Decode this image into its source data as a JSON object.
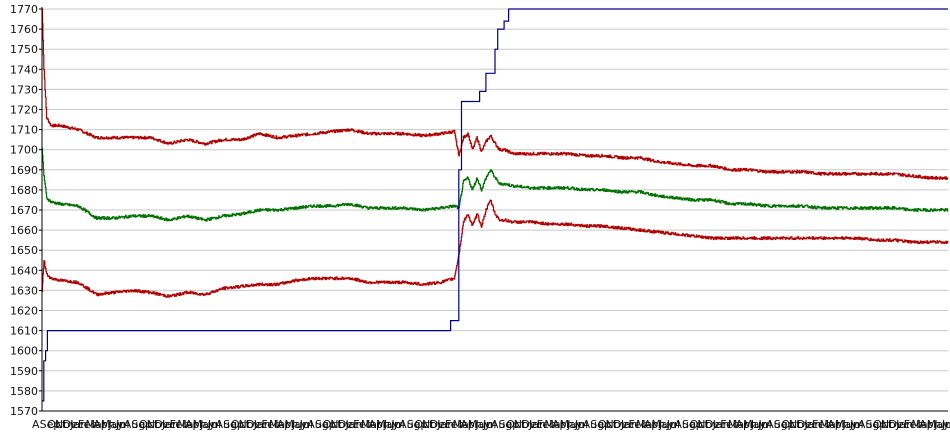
{
  "chart_data": {
    "type": "line",
    "title": "",
    "xlabel": "",
    "ylabel": "",
    "grid": true,
    "legend": "none",
    "ylim": [
      1570,
      1770
    ],
    "y_ticks": [
      1570,
      1580,
      1590,
      1600,
      1610,
      1620,
      1630,
      1640,
      1650,
      1660,
      1670,
      1680,
      1690,
      1700,
      1710,
      1720,
      1730,
      1740,
      1750,
      1760,
      1770
    ],
    "x_range": [
      0,
      1
    ],
    "x_tick_labels": [
      "A",
      "Sep",
      "Oct",
      "Nov",
      "Dec",
      "Jan",
      "Feb",
      "Mar",
      "Apr",
      "May",
      "Jun",
      "Jul",
      "Aug"
    ],
    "colors": {
      "upper_band": "#b00000",
      "middle": "#007000",
      "lower_band": "#b00000",
      "step": "#00008b",
      "grid": "#c8c8c8",
      "axis": "#000000"
    },
    "series": [
      {
        "key": "upper_band",
        "x": [
          0.0,
          0.002,
          0.005,
          0.01,
          0.02,
          0.04,
          0.06,
          0.08,
          0.1,
          0.12,
          0.14,
          0.16,
          0.18,
          0.2,
          0.22,
          0.24,
          0.26,
          0.28,
          0.3,
          0.32,
          0.34,
          0.36,
          0.38,
          0.4,
          0.42,
          0.44,
          0.455,
          0.46,
          0.465,
          0.47,
          0.475,
          0.48,
          0.485,
          0.49,
          0.495,
          0.5,
          0.505,
          0.51,
          0.52,
          0.54,
          0.56,
          0.58,
          0.6,
          0.62,
          0.64,
          0.66,
          0.68,
          0.7,
          0.72,
          0.74,
          0.76,
          0.78,
          0.8,
          0.82,
          0.84,
          0.86,
          0.88,
          0.9,
          0.92,
          0.94,
          0.96,
          0.98,
          1.0
        ],
        "values": [
          1770,
          1740,
          1716,
          1712,
          1712,
          1710,
          1706,
          1706,
          1706,
          1706,
          1703,
          1705,
          1703,
          1705,
          1705,
          1708,
          1706,
          1707,
          1708,
          1709,
          1710,
          1708,
          1708,
          1708,
          1707,
          1708,
          1709,
          1697,
          1706,
          1708,
          1700,
          1706,
          1699,
          1704,
          1707,
          1703,
          1700,
          1700,
          1698,
          1698,
          1698,
          1698,
          1697,
          1697,
          1696,
          1696,
          1694,
          1693,
          1692,
          1692,
          1690,
          1690,
          1689,
          1689,
          1689,
          1688,
          1688,
          1688,
          1688,
          1688,
          1687,
          1686,
          1686
        ]
      },
      {
        "key": "middle",
        "x": [
          0.0,
          0.002,
          0.005,
          0.01,
          0.02,
          0.04,
          0.06,
          0.08,
          0.1,
          0.12,
          0.14,
          0.16,
          0.18,
          0.2,
          0.22,
          0.24,
          0.26,
          0.28,
          0.3,
          0.32,
          0.34,
          0.36,
          0.38,
          0.4,
          0.42,
          0.44,
          0.455,
          0.46,
          0.465,
          0.47,
          0.475,
          0.48,
          0.485,
          0.49,
          0.495,
          0.5,
          0.505,
          0.51,
          0.52,
          0.54,
          0.56,
          0.58,
          0.6,
          0.62,
          0.64,
          0.66,
          0.68,
          0.7,
          0.72,
          0.74,
          0.76,
          0.78,
          0.8,
          0.82,
          0.84,
          0.86,
          0.88,
          0.9,
          0.92,
          0.94,
          0.96,
          0.98,
          1.0
        ],
        "values": [
          1700,
          1687,
          1676,
          1674,
          1673,
          1672,
          1666,
          1666,
          1667,
          1667,
          1665,
          1667,
          1665,
          1667,
          1668,
          1670,
          1670,
          1671,
          1672,
          1672,
          1673,
          1671,
          1671,
          1671,
          1670,
          1671,
          1672,
          1671,
          1684,
          1686,
          1680,
          1686,
          1680,
          1686,
          1690,
          1686,
          1683,
          1683,
          1682,
          1681,
          1681,
          1681,
          1680,
          1680,
          1679,
          1679,
          1677,
          1676,
          1675,
          1675,
          1673,
          1673,
          1672,
          1672,
          1672,
          1671,
          1671,
          1671,
          1671,
          1671,
          1670,
          1670,
          1670
        ]
      },
      {
        "key": "lower_band",
        "x": [
          0.0,
          0.002,
          0.005,
          0.01,
          0.02,
          0.04,
          0.06,
          0.08,
          0.1,
          0.12,
          0.14,
          0.16,
          0.18,
          0.2,
          0.22,
          0.24,
          0.26,
          0.28,
          0.3,
          0.32,
          0.34,
          0.36,
          0.38,
          0.4,
          0.42,
          0.44,
          0.455,
          0.46,
          0.465,
          0.47,
          0.475,
          0.48,
          0.485,
          0.49,
          0.495,
          0.5,
          0.505,
          0.51,
          0.52,
          0.54,
          0.56,
          0.58,
          0.6,
          0.62,
          0.64,
          0.66,
          0.68,
          0.7,
          0.72,
          0.74,
          0.76,
          0.78,
          0.8,
          0.82,
          0.84,
          0.86,
          0.88,
          0.9,
          0.92,
          0.94,
          0.96,
          0.98,
          1.0
        ],
        "values": [
          1630,
          1645,
          1638,
          1636,
          1635,
          1634,
          1628,
          1629,
          1630,
          1629,
          1627,
          1629,
          1628,
          1631,
          1632,
          1633,
          1633,
          1635,
          1636,
          1636,
          1636,
          1634,
          1634,
          1634,
          1633,
          1634,
          1636,
          1648,
          1664,
          1668,
          1662,
          1668,
          1662,
          1670,
          1675,
          1668,
          1665,
          1665,
          1664,
          1664,
          1663,
          1663,
          1662,
          1662,
          1661,
          1660,
          1659,
          1658,
          1657,
          1656,
          1656,
          1656,
          1656,
          1656,
          1656,
          1656,
          1656,
          1656,
          1655,
          1655,
          1654,
          1654,
          1654
        ]
      },
      {
        "key": "step",
        "x": [
          0.0,
          0.002,
          0.004,
          0.006,
          0.45,
          0.451,
          0.455,
          0.46,
          0.463,
          0.47,
          0.48,
          0.483,
          0.49,
          0.495,
          0.5,
          0.503,
          0.508,
          0.51,
          0.515,
          1.0
        ],
        "values": [
          1575,
          1595,
          1600,
          1610,
          1610,
          1615,
          1615,
          1690,
          1724,
          1724,
          1724,
          1729,
          1738,
          1738,
          1750,
          1760,
          1760,
          1764,
          1770,
          1770
        ]
      }
    ]
  }
}
